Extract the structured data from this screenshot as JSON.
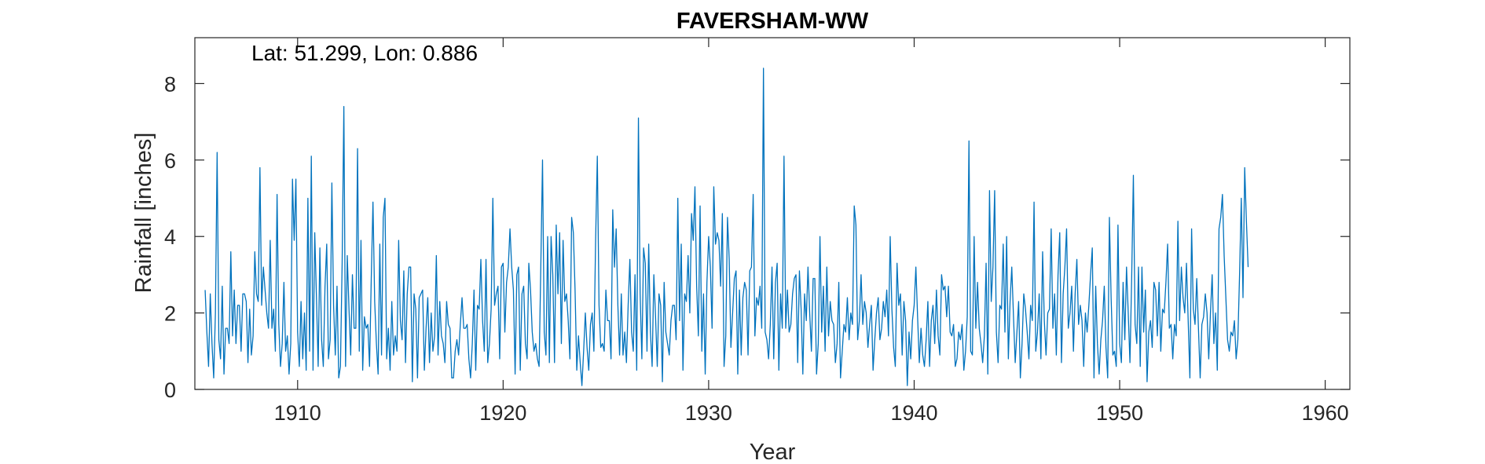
{
  "chart_data": {
    "type": "line",
    "title": "FAVERSHAM-WW",
    "annotation": "Lat: 51.299, Lon: 0.886",
    "xlabel": "Year",
    "ylabel": "Rainfall [inches]",
    "xlim": [
      1905.0,
      1961.2
    ],
    "ylim": [
      0,
      9.2
    ],
    "xticks": [
      1910,
      1920,
      1930,
      1940,
      1950,
      1960
    ],
    "yticks": [
      0,
      2,
      4,
      6,
      8
    ],
    "grid": false,
    "legend": "none",
    "colors": {
      "series": "#0072BD",
      "axes": "#262626",
      "background": "#ffffff"
    },
    "series": [
      {
        "x_start": 1905.5,
        "x_step": 0.0833333,
        "values": [
          2.6,
          1.5,
          0.6,
          2.5,
          1.2,
          0.3,
          2.0,
          6.2,
          1.3,
          0.8,
          2.7,
          0.4,
          1.6,
          1.6,
          1.2,
          3.6,
          1.4,
          2.6,
          1.2,
          2.2,
          2.2,
          1.0,
          2.5,
          2.5,
          2.3,
          0.7,
          2.1,
          0.9,
          1.4,
          3.6,
          2.5,
          2.3,
          5.8,
          2.2,
          3.2,
          2.6,
          2.0,
          1.6,
          3.9,
          1.6,
          2.1,
          1.0,
          5.1,
          1.7,
          0.6,
          1.2,
          2.8,
          1.0,
          1.4,
          0.4,
          1.2,
          5.5,
          3.9,
          5.5,
          1.5,
          0.6,
          2.3,
          0.8,
          2.0,
          0.5,
          5.0,
          1.0,
          6.1,
          0.5,
          4.1,
          2.4,
          0.6,
          3.7,
          1.3,
          0.6,
          2.7,
          3.8,
          0.8,
          1.3,
          5.4,
          2.2,
          0.9,
          2.7,
          0.3,
          0.6,
          3.3,
          7.4,
          0.6,
          3.5,
          2.1,
          0.9,
          3.0,
          1.6,
          1.6,
          6.3,
          1.0,
          3.9,
          0.5,
          1.9,
          1.6,
          1.7,
          0.6,
          2.9,
          4.9,
          2.3,
          1.2,
          0.4,
          3.8,
          0.9,
          4.5,
          5.0,
          0.8,
          1.6,
          0.5,
          2.3,
          0.9,
          1.4,
          1.0,
          3.9,
          1.8,
          1.3,
          3.1,
          0.7,
          2.5,
          3.2,
          3.2,
          0.2,
          2.5,
          2.1,
          0.3,
          2.4,
          2.5,
          2.6,
          0.5,
          1.6,
          2.4,
          0.7,
          2.0,
          1.0,
          1.4,
          3.5,
          0.9,
          2.3,
          1.4,
          1.2,
          0.7,
          2.3,
          1.7,
          1.6,
          0.3,
          0.3,
          1.0,
          1.3,
          0.9,
          1.7,
          2.4,
          1.6,
          1.6,
          1.7,
          0.8,
          0.3,
          1.2,
          2.6,
          0.5,
          2.2,
          2.1,
          3.4,
          1.8,
          1.0,
          3.4,
          0.7,
          1.2,
          2.1,
          5.0,
          2.2,
          2.5,
          2.7,
          0.8,
          3.2,
          3.3,
          1.5,
          2.8,
          3.2,
          4.2,
          3.2,
          2.6,
          0.4,
          3.0,
          3.2,
          0.5,
          2.5,
          2.7,
          1.2,
          0.8,
          3.3,
          2.6,
          1.5,
          1.0,
          1.2,
          0.8,
          0.6,
          3.2,
          6.0,
          1.5,
          0.9,
          4.0,
          0.7,
          4.0,
          3.0,
          0.7,
          4.3,
          2.5,
          4.1,
          1.2,
          3.9,
          2.3,
          2.5,
          1.8,
          0.8,
          4.5,
          4.1,
          2.6,
          0.5,
          1.4,
          0.7,
          0.1,
          1.0,
          2.0,
          1.1,
          0.5,
          1.7,
          2.0,
          1.0,
          3.9,
          6.1,
          2.2,
          1.1,
          1.2,
          1.0,
          2.6,
          1.8,
          1.8,
          0.8,
          4.7,
          3.2,
          4.2,
          2.2,
          0.9,
          2.5,
          0.9,
          1.5,
          0.7,
          2.2,
          3.4,
          1.5,
          1.0,
          3.0,
          0.5,
          7.1,
          2.5,
          0.8,
          3.7,
          3.3,
          1.0,
          3.8,
          1.5,
          0.6,
          3.0,
          1.9,
          0.6,
          2.5,
          2.2,
          0.2,
          2.8,
          1.5,
          1.2,
          0.9,
          1.8,
          2.2,
          2.2,
          1.3,
          5.0,
          1.8,
          3.8,
          0.5,
          2.5,
          2.3,
          3.5,
          2.0,
          4.6,
          3.9,
          5.3,
          2.7,
          1.4,
          4.8,
          1.0,
          2.5,
          0.4,
          2.8,
          4.0,
          3.2,
          1.6,
          5.3,
          3.8,
          4.1,
          3.9,
          2.7,
          4.6,
          0.6,
          1.4,
          4.5,
          3.4,
          1.1,
          2.0,
          2.9,
          3.1,
          0.4,
          2.6,
          0.9,
          2.4,
          2.8,
          2.6,
          0.9,
          3.1,
          3.2,
          5.1,
          1.4,
          2.4,
          2.2,
          2.7,
          1.6,
          8.4,
          1.5,
          1.3,
          0.8,
          1.7,
          3.2,
          0.8,
          2.8,
          3.3,
          0.5,
          2.5,
          1.6,
          6.1,
          1.6,
          2.6,
          1.5,
          1.7,
          2.5,
          2.9,
          3.0,
          0.7,
          3.1,
          2.1,
          0.4,
          2.5,
          1.8,
          3.2,
          2.0,
          1.0,
          2.9,
          2.9,
          0.4,
          1.2,
          4.0,
          1.5,
          2.7,
          1.0,
          3.2,
          1.4,
          2.3,
          1.8,
          1.7,
          0.7,
          1.2,
          2.8,
          0.3,
          1.0,
          1.7,
          1.5,
          2.4,
          1.3,
          2.0,
          1.7,
          4.8,
          4.3,
          1.3,
          1.8,
          3.0,
          1.7,
          2.3,
          2.0,
          1.1,
          1.7,
          2.2,
          0.5,
          1.3,
          2.0,
          2.4,
          1.3,
          1.6,
          2.3,
          1.9,
          2.6,
          1.4,
          4.0,
          2.1,
          1.1,
          0.6,
          3.3,
          2.2,
          2.5,
          0.9,
          2.3,
          1.8,
          0.1,
          1.5,
          0.8,
          1.8,
          2.2,
          3.2,
          1.9,
          0.7,
          1.6,
          0.9,
          0.6,
          1.3,
          2.3,
          0.6,
          1.8,
          2.2,
          1.2,
          2.6,
          1.4,
          0.9,
          3.0,
          2.6,
          2.7,
          1.9,
          2.7,
          1.5,
          1.4,
          1.7,
          0.6,
          0.8,
          1.5,
          1.3,
          1.7,
          0.5,
          1.0,
          1.9,
          6.5,
          1.0,
          0.9,
          4.0,
          1.6,
          2.8,
          1.6,
          1.2,
          0.7,
          1.4,
          3.3,
          0.4,
          5.2,
          2.3,
          3.2,
          5.2,
          1.5,
          0.7,
          2.2,
          2.1,
          3.8,
          1.5,
          4.0,
          0.8,
          2.3,
          3.2,
          1.9,
          0.7,
          1.5,
          2.3,
          0.3,
          1.2,
          2.5,
          2.1,
          1.5,
          0.8,
          2.2,
          1.8,
          4.9,
          1.0,
          1.5,
          2.5,
          0.8,
          3.6,
          1.8,
          0.9,
          2.0,
          2.1,
          4.2,
          1.6,
          2.5,
          0.9,
          3.0,
          4.1,
          0.7,
          2.5,
          3.2,
          4.2,
          1.6,
          2.0,
          2.7,
          1.0,
          2.5,
          3.4,
          1.7,
          2.2,
          1.8,
          0.6,
          2.0,
          1.5,
          2.2,
          3.0,
          3.7,
          0.3,
          2.7,
          1.2,
          0.4,
          1.3,
          1.8,
          2.7,
          1.1,
          0.3,
          4.5,
          2.4,
          0.9,
          1.0,
          0.6,
          4.3,
          1.2,
          0.7,
          2.8,
          1.3,
          3.2,
          2.0,
          0.7,
          2.9,
          5.6,
          1.7,
          1.2,
          3.2,
          0.6,
          3.2,
          1.5,
          2.6,
          0.2,
          1.5,
          1.8,
          1.1,
          2.8,
          2.6,
          1.4,
          2.8,
          1.0,
          2.1,
          2.0,
          2.8,
          3.8,
          1.6,
          1.7,
          0.8,
          1.7,
          1.4,
          4.4,
          1.8,
          3.2,
          2.4,
          2.0,
          3.3,
          1.8,
          0.3,
          4.2,
          2.1,
          1.7,
          2.9,
          1.6,
          0.3,
          1.7,
          1.9,
          2.5,
          2.0,
          0.8,
          2.0,
          3.0,
          1.2,
          2.0,
          0.5,
          4.2,
          4.5,
          5.1,
          3.5,
          2.4,
          1.3,
          1.0,
          1.5,
          1.4,
          1.8,
          0.8,
          1.3,
          3.0,
          5.0,
          2.4,
          5.8,
          4.4,
          3.2
        ]
      }
    ]
  }
}
